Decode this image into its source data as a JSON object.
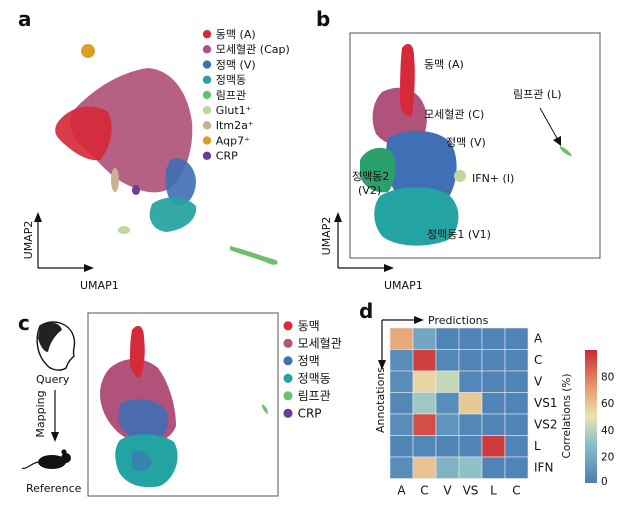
{
  "panel_a": {
    "letter": "a",
    "xlabel": "UMAP1",
    "ylabel": "UMAP2",
    "legend": [
      {
        "label": "동맥 (A)",
        "color": "#d62a3a"
      },
      {
        "label": "모세혈관 (Cap)",
        "color": "#b0527a"
      },
      {
        "label": "정맥 (V)",
        "color": "#3f6fb5"
      },
      {
        "label": "정맥동",
        "color": "#23a3a1"
      },
      {
        "label": "림프관",
        "color": "#6cc06b"
      },
      {
        "label": "Glut1⁺",
        "color": "#bfd79a"
      },
      {
        "label": "Itm2a⁺",
        "color": "#c7b291"
      },
      {
        "label": "Aqp7⁺",
        "color": "#d9a024"
      },
      {
        "label": "CRP",
        "color": "#6a3d9a"
      }
    ]
  },
  "panel_b": {
    "letter": "b",
    "xlabel": "UMAP1",
    "ylabel": "UMAP2",
    "labels": {
      "artery": "동맥 (A)",
      "capillary": "모세혈관 (C)",
      "lymph": "림프관 (L)",
      "vein": "정맥 (V)",
      "ifn": "IFN+ (I)",
      "sinus2_line1": "정맥동2",
      "sinus2_line2": "(V2)",
      "sinus1": "정맥동1 (V1)"
    }
  },
  "panel_c": {
    "letter": "c",
    "query_label": "Query",
    "mapping_label": "Mapping",
    "reference_label": "Reference",
    "legend": [
      {
        "label": "동맥",
        "color": "#d62a3a"
      },
      {
        "label": "모세혈관",
        "color": "#b0527a"
      },
      {
        "label": "정맥",
        "color": "#3f6fb5"
      },
      {
        "label": "정맥동",
        "color": "#23a3a1"
      },
      {
        "label": "림프관",
        "color": "#6cc06b"
      },
      {
        "label": "CRP",
        "color": "#6a3d9a"
      }
    ]
  },
  "panel_d": {
    "letter": "d",
    "predictions_label": "Predictions",
    "annotations_label": "Annotations",
    "colorbar_label": "Correlations (%)",
    "colorbar_ticks": [
      "0",
      "20",
      "40",
      "60",
      "80"
    ],
    "chart_data": {
      "type": "heatmap",
      "columns": [
        "A",
        "C",
        "V",
        "VS",
        "L",
        "C"
      ],
      "rows": [
        "A",
        "C",
        "V",
        "VS1",
        "VS2",
        "L",
        "IFN"
      ],
      "values": [
        [
          70,
          15,
          2,
          2,
          2,
          2
        ],
        [
          5,
          95,
          3,
          2,
          2,
          2
        ],
        [
          5,
          55,
          40,
          3,
          2,
          2
        ],
        [
          3,
          30,
          5,
          60,
          2,
          2
        ],
        [
          5,
          92,
          8,
          3,
          2,
          2
        ],
        [
          2,
          3,
          2,
          2,
          96,
          2
        ],
        [
          5,
          62,
          20,
          25,
          2,
          2
        ]
      ],
      "vmin": 0,
      "vmax": 100,
      "colormap": [
        "#4b7fb5",
        "#8ec0c7",
        "#e8e6b0",
        "#e89a6c",
        "#c82a34"
      ]
    }
  }
}
